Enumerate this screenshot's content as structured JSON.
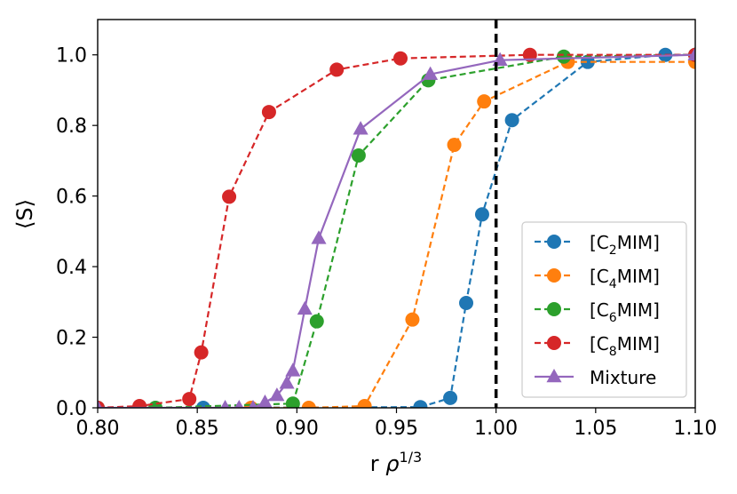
{
  "chart_data": {
    "type": "line",
    "title": "",
    "xlabel_main": "r ",
    "xlabel_symbol": "ρ",
    "xlabel_exp": "1/3",
    "ylabel": "⟨S⟩",
    "xlim": [
      0.8,
      1.1
    ],
    "ylim": [
      0.0,
      1.1
    ],
    "xticks": [
      0.8,
      0.85,
      0.9,
      0.95,
      1.0,
      1.05,
      1.1
    ],
    "xtick_labels": [
      "0.80",
      "0.85",
      "0.90",
      "0.95",
      "1.00",
      "1.05",
      "1.10"
    ],
    "yticks": [
      0.0,
      0.2,
      0.4,
      0.6,
      0.8,
      1.0
    ],
    "ytick_labels": [
      "0.0",
      "0.2",
      "0.4",
      "0.6",
      "0.8",
      "1.0"
    ],
    "vline": {
      "x": 1.0,
      "style": "dashed",
      "color": "#000000"
    },
    "legend_position": "lower-right",
    "series": [
      {
        "name": "[C2MIM]",
        "label_pre": "[C",
        "label_sub": "2",
        "label_post": "MIM]",
        "color": "#1f77b4",
        "linestyle": "dashed",
        "marker": "circle",
        "x": [
          0.8,
          0.853,
          0.962,
          0.977,
          0.985,
          0.993,
          1.008,
          1.046,
          1.085,
          1.1
        ],
        "y": [
          0.0,
          0.0,
          0.002,
          0.028,
          0.297,
          0.548,
          0.815,
          0.98,
          1.0,
          1.0
        ]
      },
      {
        "name": "[C4MIM]",
        "label_pre": "[C",
        "label_sub": "4",
        "label_post": "MIM]",
        "color": "#ff7f0e",
        "linestyle": "dashed",
        "marker": "circle",
        "x": [
          0.8,
          0.877,
          0.906,
          0.934,
          0.958,
          0.979,
          0.994,
          1.036,
          1.1
        ],
        "y": [
          0.0,
          0.0,
          0.0,
          0.005,
          0.25,
          0.745,
          0.868,
          0.98,
          0.98
        ]
      },
      {
        "name": "[C6MIM]",
        "label_pre": "[C",
        "label_sub": "6",
        "label_post": "MIM]",
        "color": "#2ca02c",
        "linestyle": "dashed",
        "marker": "circle",
        "x": [
          0.8,
          0.829,
          0.898,
          0.91,
          0.931,
          0.966,
          1.034,
          1.1
        ],
        "y": [
          0.0,
          0.0,
          0.012,
          0.245,
          0.715,
          0.928,
          0.995,
          1.0
        ]
      },
      {
        "name": "[C8MIM]",
        "label_pre": "[C",
        "label_sub": "8",
        "label_post": "MIM]",
        "color": "#d62728",
        "linestyle": "dashed",
        "marker": "circle",
        "x": [
          0.8,
          0.821,
          0.846,
          0.852,
          0.866,
          0.886,
          0.92,
          0.952,
          1.017,
          1.1
        ],
        "y": [
          0.0,
          0.005,
          0.025,
          0.157,
          0.598,
          0.838,
          0.958,
          0.99,
          1.0,
          1.0
        ]
      },
      {
        "name": "Mixture",
        "label_pre": "Mixture",
        "label_sub": "",
        "label_post": "",
        "color": "#9467bd",
        "linestyle": "solid",
        "marker": "triangle",
        "x": [
          0.8,
          0.864,
          0.871,
          0.878,
          0.884,
          0.89,
          0.895,
          0.898,
          0.904,
          0.911,
          0.932,
          0.967,
          1.002,
          1.1
        ],
        "y": [
          0.0,
          0.0,
          0.0,
          0.0,
          0.015,
          0.035,
          0.07,
          0.105,
          0.28,
          0.48,
          0.79,
          0.945,
          0.985,
          1.0
        ]
      }
    ]
  }
}
